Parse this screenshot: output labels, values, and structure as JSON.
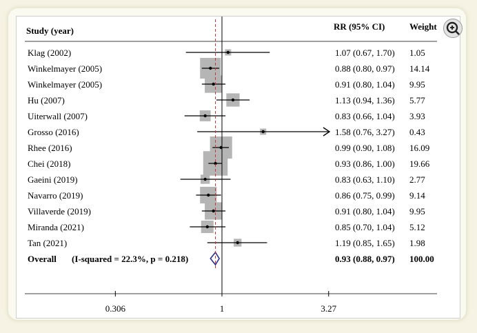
{
  "chart_data": {
    "type": "forest",
    "headers": {
      "study": "Study (year)",
      "rr": "RR (95% CI)",
      "weight": "Weight"
    },
    "x_ticks": [
      {
        "value": 0.306,
        "label": "0.306"
      },
      {
        "value": 1,
        "label": "1"
      },
      {
        "value": 3.27,
        "label": "3.27"
      }
    ],
    "x_scale": "log",
    "studies": [
      {
        "label": "Klag (2002)",
        "rr": 1.07,
        "lo": 0.67,
        "hi": 1.7,
        "ci_text": "1.07 (0.67, 1.70)",
        "weight": "1.05"
      },
      {
        "label": "Winkelmayer (2005)",
        "rr": 0.88,
        "lo": 0.8,
        "hi": 0.97,
        "ci_text": "0.88 (0.80, 0.97)",
        "weight": "14.14"
      },
      {
        "label": "Winkelmayer (2005)",
        "rr": 0.91,
        "lo": 0.8,
        "hi": 1.04,
        "ci_text": "0.91 (0.80, 1.04)",
        "weight": "9.95"
      },
      {
        "label": "Hu (2007)",
        "rr": 1.13,
        "lo": 0.94,
        "hi": 1.36,
        "ci_text": "1.13 (0.94, 1.36)",
        "weight": "5.77"
      },
      {
        "label": "Uiterwall (2007)",
        "rr": 0.83,
        "lo": 0.66,
        "hi": 1.04,
        "ci_text": "0.83 (0.66, 1.04)",
        "weight": "3.93"
      },
      {
        "label": "Grosso (2016)",
        "rr": 1.58,
        "lo": 0.76,
        "hi": 3.27,
        "ci_text": "1.58 (0.76, 3.27)",
        "weight": "0.43",
        "arrow": true
      },
      {
        "label": "Rhee (2016)",
        "rr": 0.99,
        "lo": 0.9,
        "hi": 1.08,
        "ci_text": "0.99 (0.90, 1.08)",
        "weight": "16.09"
      },
      {
        "label": "Chei (2018)",
        "rr": 0.93,
        "lo": 0.86,
        "hi": 1.0,
        "ci_text": "0.93 (0.86, 1.00)",
        "weight": "19.66"
      },
      {
        "label": "Gaeini (2019)",
        "rr": 0.83,
        "lo": 0.63,
        "hi": 1.1,
        "ci_text": "0.83 (0.63, 1.10)",
        "weight": "2.77"
      },
      {
        "label": "Navarro (2019)",
        "rr": 0.86,
        "lo": 0.75,
        "hi": 0.99,
        "ci_text": "0.86 (0.75, 0.99)",
        "weight": "9.14"
      },
      {
        "label": "Villaverde (2019)",
        "rr": 0.91,
        "lo": 0.8,
        "hi": 1.04,
        "ci_text": "0.91 (0.80, 1.04)",
        "weight": "9.95"
      },
      {
        "label": "Miranda (2021)",
        "rr": 0.85,
        "lo": 0.7,
        "hi": 1.04,
        "ci_text": "0.85 (0.70, 1.04)",
        "weight": "5.12"
      },
      {
        "label": "Tan (2021)",
        "rr": 1.19,
        "lo": 0.85,
        "hi": 1.65,
        "ci_text": "1.19 (0.85, 1.65)",
        "weight": "1.98"
      }
    ],
    "overall": {
      "label": "Overall",
      "stats": "(I-squared = 22.3%, p = 0.218)",
      "rr": 0.93,
      "lo": 0.88,
      "hi": 0.97,
      "ci_text": "0.93 (0.88, 0.97)",
      "weight": "100.00"
    },
    "colors": {
      "box": "#b5b5b5",
      "line": "#000000",
      "ref_line": "#c0392b",
      "diamond": "#2c2c8c"
    }
  },
  "toolbar": {
    "zoom_icon": "zoom-in-icon"
  }
}
